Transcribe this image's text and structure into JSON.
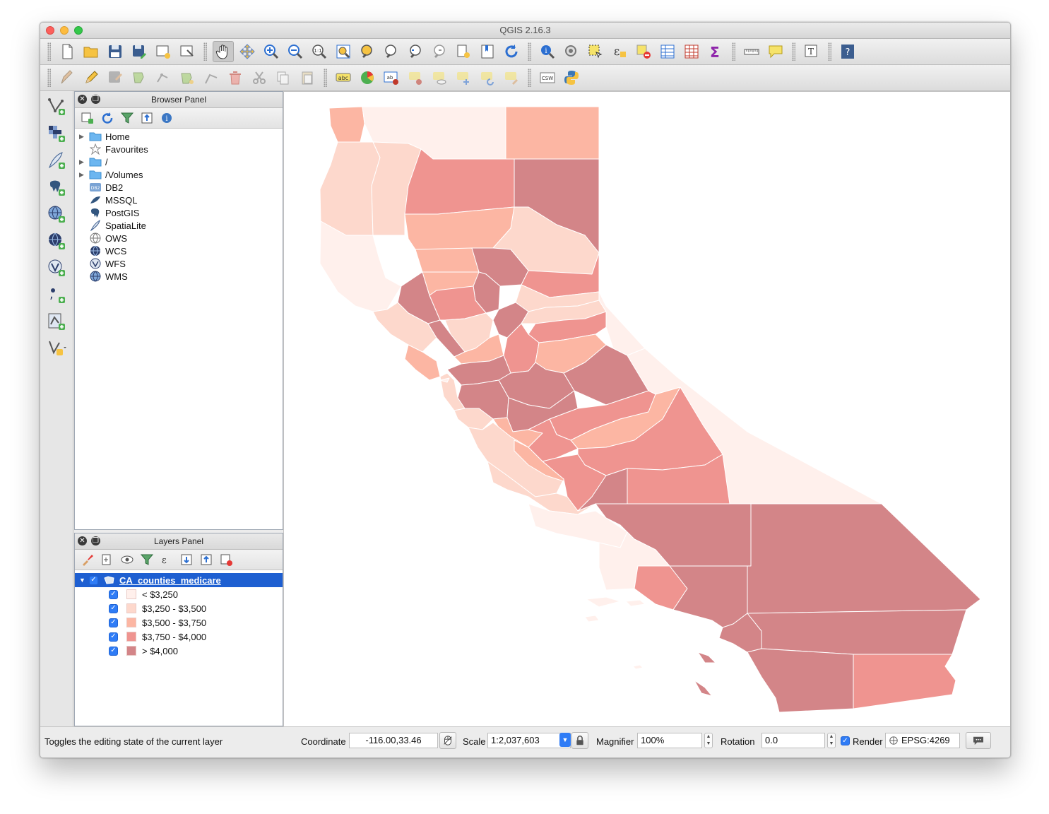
{
  "window": {
    "title": "QGIS 2.16.3"
  },
  "browser_panel": {
    "title": "Browser Panel",
    "items": [
      {
        "label": "Home",
        "expandable": true,
        "icon": "folder-icon"
      },
      {
        "label": "Favourites",
        "expandable": false,
        "icon": "star-icon"
      },
      {
        "label": "/",
        "expandable": true,
        "icon": "folder-icon"
      },
      {
        "label": "/Volumes",
        "expandable": true,
        "icon": "folder-icon"
      },
      {
        "label": "DB2",
        "expandable": false,
        "icon": "db2-icon"
      },
      {
        "label": "MSSQL",
        "expandable": false,
        "icon": "mssql-icon"
      },
      {
        "label": "PostGIS",
        "expandable": false,
        "icon": "postgis-elephant-icon"
      },
      {
        "label": "SpatiaLite",
        "expandable": false,
        "icon": "spatialite-feather-icon"
      },
      {
        "label": "OWS",
        "expandable": false,
        "icon": "ows-globe-icon"
      },
      {
        "label": "WCS",
        "expandable": false,
        "icon": "wcs-globe-icon"
      },
      {
        "label": "WFS",
        "expandable": false,
        "icon": "wfs-icon"
      },
      {
        "label": "WMS",
        "expandable": false,
        "icon": "wms-globe-icon"
      }
    ]
  },
  "layers_panel": {
    "title": "Layers Panel",
    "layer": {
      "name": "CA_counties_medicare",
      "checked": true
    },
    "legend": [
      {
        "label": "< $3,250",
        "color": "#fff0ec",
        "checked": true
      },
      {
        "label": "$3,250 - $3,500",
        "color": "#fdd8cc",
        "checked": true
      },
      {
        "label": "$3,500 - $3,750",
        "color": "#fcb6a3",
        "checked": true
      },
      {
        "label": "$3,750 - $4,000",
        "color": "#ef9490",
        "checked": true
      },
      {
        "label": "> $4,000",
        "color": "#d38588",
        "checked": true
      }
    ]
  },
  "status": {
    "message": "Toggles the editing state of the current layer",
    "coordinate_label": "Coordinate",
    "coordinate_value": "-116.00,33.46",
    "scale_label": "Scale",
    "scale_value": "1:2,037,603",
    "magnifier_label": "Magnifier",
    "magnifier_value": "100%",
    "rotation_label": "Rotation",
    "rotation_value": "0.0",
    "render_label": "Render",
    "render_checked": true,
    "crs": "EPSG:4269"
  }
}
